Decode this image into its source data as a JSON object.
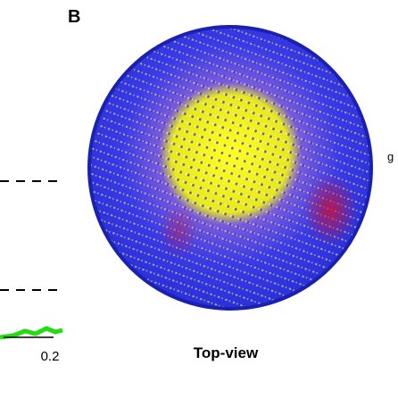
{
  "panel_label": "B",
  "caption": "Top-view",
  "axis_tick": "0.2",
  "edge_text": "g"
}
